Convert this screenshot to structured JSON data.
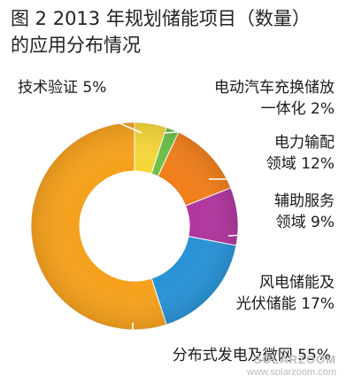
{
  "title": {
    "line1": "图 2  2013 年规划储能项目（数量）",
    "line2": "的应用分布情况"
  },
  "watermark": {
    "brand": "SOLARZOOM",
    "url": "www.solarzoom.com"
  },
  "chart_data": {
    "type": "pie",
    "style": "donut",
    "unit": "%",
    "slices": [
      {
        "label_lines": [
          "技术验证 5%"
        ],
        "value": 5,
        "color": "#f5d63a"
      },
      {
        "label_lines": [
          "电动汽车充换储放",
          "一体化 2%"
        ],
        "value": 2,
        "color": "#6cc04a"
      },
      {
        "label_lines": [
          "电力输配",
          "领域 12%"
        ],
        "value": 12,
        "color": "#f07f1c"
      },
      {
        "label_lines": [
          "辅助服务",
          "领域 9%"
        ],
        "value": 9,
        "color": "#b0379e"
      },
      {
        "label_lines": [
          "风电储能及",
          "光伏储能 17%"
        ],
        "value": 17,
        "color": "#2a93d6"
      },
      {
        "label_lines": [
          "分布式发电及微网 55%"
        ],
        "value": 55,
        "color": "#f5a11e"
      }
    ]
  }
}
